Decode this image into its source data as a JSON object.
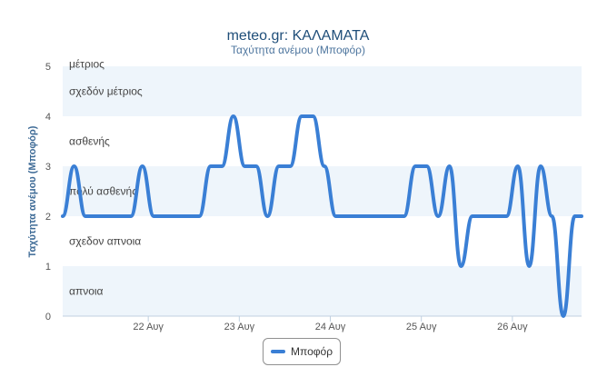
{
  "chart_data": {
    "type": "line",
    "title": "meteo.gr: ΚΑΛΑΜΑΤΑ",
    "subtitle": "Ταχύτητα ανέμου (Μποφόρ)",
    "ylabel": "Ταχύτητα ανέμου (Μποφόρ)",
    "xlabel": "",
    "ylim": [
      0,
      5
    ],
    "yticks": [
      "0",
      "1",
      "2",
      "3",
      "4",
      "5"
    ],
    "xticks": [
      {
        "label": "22 Αυγ",
        "x": 1
      },
      {
        "label": "23 Αυγ",
        "x": 2
      },
      {
        "label": "24 Αυγ",
        "x": 3
      },
      {
        "label": "25 Αυγ",
        "x": 4
      },
      {
        "label": "26 Αυγ",
        "x": 5
      }
    ],
    "xlim": [
      0.06,
      5.76
    ],
    "bands": [
      {
        "from": 0,
        "to": 1,
        "label": "απνοια",
        "shaded": true
      },
      {
        "from": 1,
        "to": 2,
        "label": "σχεδον απνοια",
        "shaded": false
      },
      {
        "from": 2,
        "to": 3,
        "label": "πολύ ασθενής",
        "shaded": true
      },
      {
        "from": 3,
        "to": 4,
        "label": "ασθενής",
        "shaded": false
      },
      {
        "from": 4,
        "to": 5,
        "label": "σχεδόν μέτριος",
        "shaded": true
      },
      {
        "from": 5,
        "to": 5.2,
        "label": "μέτριος",
        "shaded": false
      }
    ],
    "grid": false,
    "legend_position": "bottom-center",
    "colors": {
      "line": "#3a7fd5",
      "band_shaded": "#eef5fb",
      "axis": "#c0d0e0"
    },
    "series": [
      {
        "name": "Μποφόρ",
        "x": [
          0.06,
          0.185,
          0.31,
          0.81,
          0.935,
          1.06,
          1.56,
          1.685,
          1.81,
          1.935,
          2.06,
          2.185,
          2.31,
          2.435,
          2.56,
          2.685,
          2.81,
          2.935,
          3.06,
          3.185,
          3.31,
          3.81,
          3.935,
          4.06,
          4.185,
          4.31,
          4.435,
          4.56,
          4.935,
          5.06,
          5.185,
          5.31,
          5.435,
          5.56,
          5.685,
          5.76
        ],
        "values": [
          2,
          3,
          2,
          2,
          3,
          2,
          2,
          3,
          3,
          4,
          3,
          3,
          2,
          3,
          3,
          4,
          4,
          3,
          2,
          2,
          2,
          2,
          3,
          3,
          2,
          3,
          1,
          2,
          2,
          3,
          1,
          3,
          2,
          0,
          2,
          2
        ]
      }
    ]
  }
}
